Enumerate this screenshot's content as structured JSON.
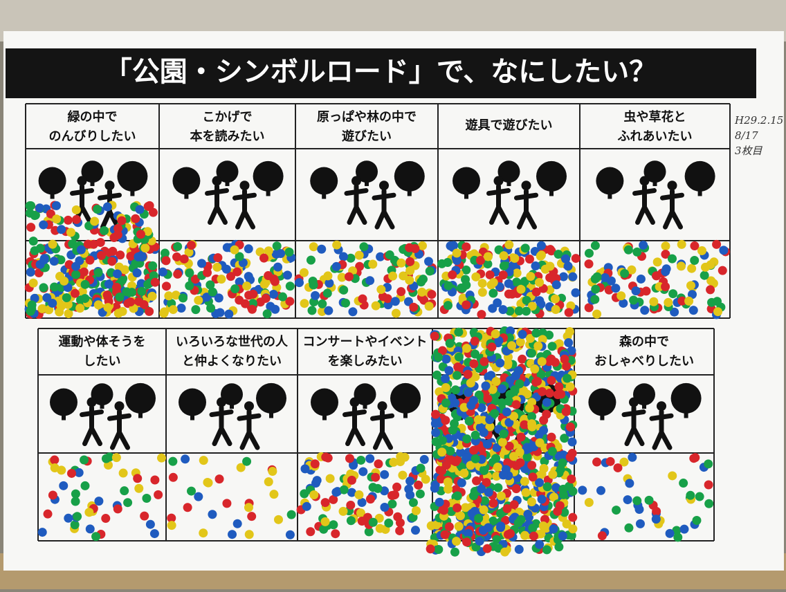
{
  "title": "「公園・シンボルロード」で、なにしたい？",
  "top_row": [
    {
      "lines": [
        "緑の中で",
        "のんびりしたい"
      ]
    },
    {
      "lines": [
        "こかげで",
        "本を読みたい"
      ]
    },
    {
      "lines": [
        "原っぱや林の中で",
        "遊びたい"
      ]
    },
    {
      "lines": [
        "遊具で遊びたい"
      ]
    },
    {
      "lines": [
        "虫や草花と",
        "ふれあいたい"
      ]
    }
  ],
  "bottom_row": [
    {
      "lines": [
        "運動や体そうを",
        "したい"
      ]
    },
    {
      "lines": [
        "いろいろな世代の人",
        "と仲よくなりたい"
      ]
    },
    {
      "lines": [
        "コンサートやイベント",
        "を楽しみたい"
      ]
    },
    {
      "lines": [
        "森の中で",
        "おしゃべりしたい"
      ]
    }
  ],
  "note": [
    "H29.2.15",
    "8/17",
    "3枚目"
  ]
}
